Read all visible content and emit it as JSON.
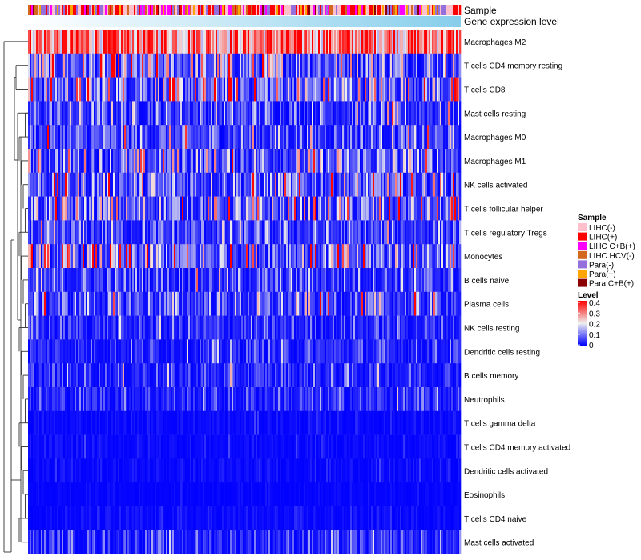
{
  "chart_data": {
    "type": "heatmap",
    "annotation_rows": [
      "Sample",
      "Gene expression level"
    ],
    "rows": [
      {
        "label": "Macrophages M2",
        "mean_level": 0.3
      },
      {
        "label": "T cells CD4 memory resting",
        "mean_level": 0.12
      },
      {
        "label": "T cells CD8",
        "mean_level": 0.13
      },
      {
        "label": "Mast cells resting",
        "mean_level": 0.07
      },
      {
        "label": "Macrophages M0",
        "mean_level": 0.07
      },
      {
        "label": "Macrophages M1",
        "mean_level": 0.1
      },
      {
        "label": "NK cells activated",
        "mean_level": 0.1
      },
      {
        "label": "T cells follicular helper",
        "mean_level": 0.1
      },
      {
        "label": "T cells regulatory  Tregs",
        "mean_level": 0.06
      },
      {
        "label": "Monocytes",
        "mean_level": 0.12
      },
      {
        "label": "B cells naive",
        "mean_level": 0.06
      },
      {
        "label": "Plasma cells",
        "mean_level": 0.07
      },
      {
        "label": "NK cells resting",
        "mean_level": 0.04
      },
      {
        "label": "Dendritic cells resting",
        "mean_level": 0.04
      },
      {
        "label": "B cells memory",
        "mean_level": 0.04
      },
      {
        "label": "Neutrophils",
        "mean_level": 0.04
      },
      {
        "label": "T cells gamma delta",
        "mean_level": 0.01
      },
      {
        "label": "T cells CD4 memory activated",
        "mean_level": 0.01
      },
      {
        "label": "Dendritic cells activated",
        "mean_level": 0.01
      },
      {
        "label": "Eosinophils",
        "mean_level": 0.005
      },
      {
        "label": "T cells CD4 naive",
        "mean_level": 0.01
      },
      {
        "label": "Mast cells activated",
        "mean_level": 0.04
      }
    ],
    "n_samples": 270,
    "legend_sample": {
      "title": "Sample",
      "entries": [
        {
          "label": "LIHC(-)",
          "color": "#FFC0CB"
        },
        {
          "label": "LIHC(+)",
          "color": "#FF0000"
        },
        {
          "label": "LIHC C+B(+)",
          "color": "#FF00FF"
        },
        {
          "label": "LIHC HCV(-)",
          "color": "#D2691E"
        },
        {
          "label": "Para(-)",
          "color": "#9370DB"
        },
        {
          "label": "Para(+)",
          "color": "#FFA500"
        },
        {
          "label": "Para C+B(+)",
          "color": "#8B0000"
        }
      ]
    },
    "legend_level": {
      "title": "Level",
      "ticks": [
        "0.4",
        "0.3",
        "0.2",
        "0.1",
        "0"
      ],
      "range": [
        0,
        0.4
      ],
      "colors": [
        "#0000FF",
        "#EEEEEE",
        "#FF0000"
      ]
    },
    "gene_expression_colors": [
      "#FFFFFF",
      "#87CEEB"
    ]
  }
}
